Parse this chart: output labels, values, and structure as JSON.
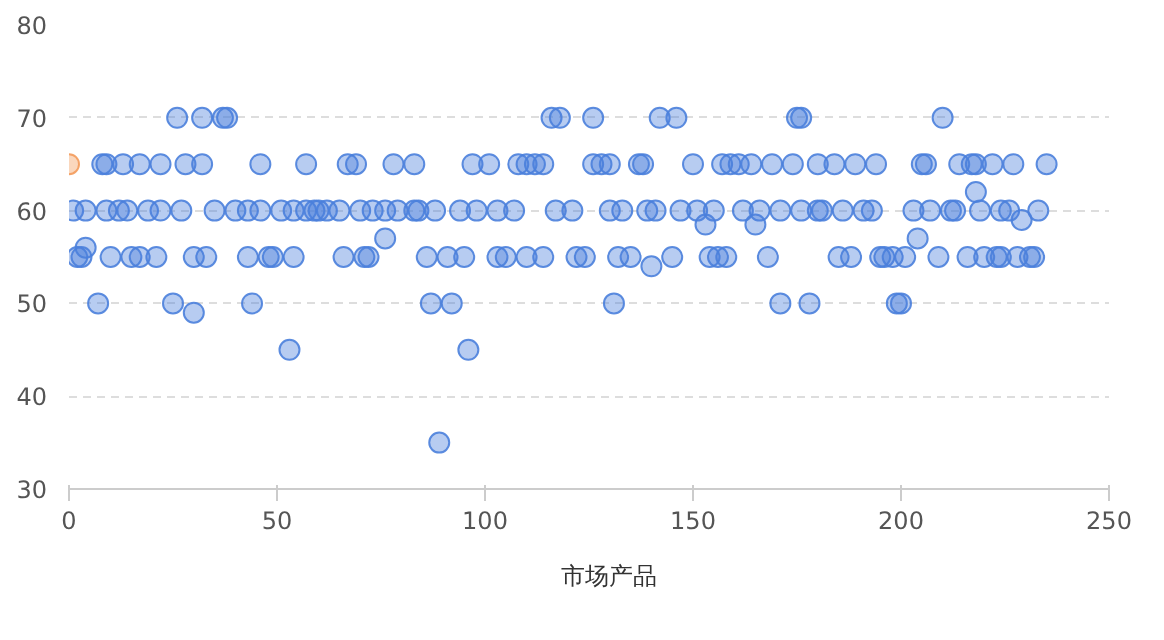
{
  "chart_data": {
    "type": "scatter",
    "xlim": [
      0,
      250
    ],
    "xticks": [
      0,
      50,
      100,
      150,
      200,
      250
    ],
    "ylim": [
      30,
      80
    ],
    "yticks": [
      30,
      40,
      50,
      60,
      70,
      80
    ],
    "grid": "y",
    "legend": "bottom",
    "series": [
      {
        "name": "市场产品",
        "color": "#4a7fdb",
        "x": [
          26,
          32,
          37,
          38,
          116,
          118,
          126,
          142,
          146,
          175,
          176,
          210,
          8,
          9,
          13,
          17,
          22,
          28,
          32,
          46,
          57,
          67,
          69,
          78,
          83,
          97,
          101,
          108,
          110,
          112,
          114,
          126,
          128,
          130,
          137,
          138,
          150,
          157,
          159,
          161,
          164,
          169,
          174,
          180,
          184,
          189,
          194,
          205,
          206,
          214,
          217,
          218,
          222,
          227,
          235,
          1,
          4,
          9,
          12,
          14,
          19,
          22,
          27,
          35,
          40,
          43,
          46,
          51,
          54,
          57,
          59,
          60,
          62,
          65,
          70,
          73,
          76,
          79,
          83,
          84,
          88,
          94,
          98,
          103,
          107,
          117,
          121,
          130,
          133,
          139,
          141,
          147,
          151,
          155,
          162,
          166,
          171,
          176,
          180,
          181,
          186,
          191,
          193,
          203,
          207,
          212,
          213,
          219,
          224,
          226,
          233,
          4,
          76,
          153,
          165,
          218,
          229,
          204,
          140,
          2,
          3,
          10,
          15,
          17,
          21,
          30,
          33,
          43,
          48,
          49,
          54,
          66,
          71,
          72,
          86,
          91,
          95,
          103,
          105,
          110,
          114,
          122,
          124,
          132,
          135,
          145,
          154,
          156,
          158,
          168,
          185,
          188,
          195,
          196,
          198,
          201,
          209,
          216,
          220,
          223,
          224,
          228,
          231,
          232,
          7,
          25,
          44,
          87,
          92,
          131,
          171,
          178,
          199,
          200,
          30,
          53,
          96,
          89
        ],
        "values": [
          70,
          70,
          70,
          70,
          70,
          70,
          70,
          70,
          70,
          70,
          70,
          70,
          65,
          65,
          65,
          65,
          65,
          65,
          65,
          65,
          65,
          65,
          65,
          65,
          65,
          65,
          65,
          65,
          65,
          65,
          65,
          65,
          65,
          65,
          65,
          65,
          65,
          65,
          65,
          65,
          65,
          65,
          65,
          65,
          65,
          65,
          65,
          65,
          65,
          65,
          65,
          65,
          65,
          65,
          65,
          60,
          60,
          60,
          60,
          60,
          60,
          60,
          60,
          60,
          60,
          60,
          60,
          60,
          60,
          60,
          60,
          60,
          60,
          60,
          60,
          60,
          60,
          60,
          60,
          60,
          60,
          60,
          60,
          60,
          60,
          60,
          60,
          60,
          60,
          60,
          60,
          60,
          60,
          60,
          60,
          60,
          60,
          60,
          60,
          60,
          60,
          60,
          60,
          60,
          60,
          60,
          60,
          60,
          60,
          60,
          60,
          56,
          57,
          58.5,
          58.5,
          62,
          59,
          57,
          54,
          55,
          55,
          55,
          55,
          55,
          55,
          55,
          55,
          55,
          55,
          55,
          55,
          55,
          55,
          55,
          55,
          55,
          55,
          55,
          55,
          55,
          55,
          55,
          55,
          55,
          55,
          55,
          55,
          55,
          55,
          55,
          55,
          55,
          55,
          55,
          55,
          55,
          55,
          55,
          55,
          55,
          55,
          55,
          55,
          55,
          50,
          50,
          50,
          50,
          50,
          50,
          50,
          50,
          50,
          50,
          49,
          45,
          45,
          35
        ]
      },
      {
        "color": "#f39a5a",
        "x": [
          0
        ],
        "values": [
          65
        ]
      }
    ]
  }
}
